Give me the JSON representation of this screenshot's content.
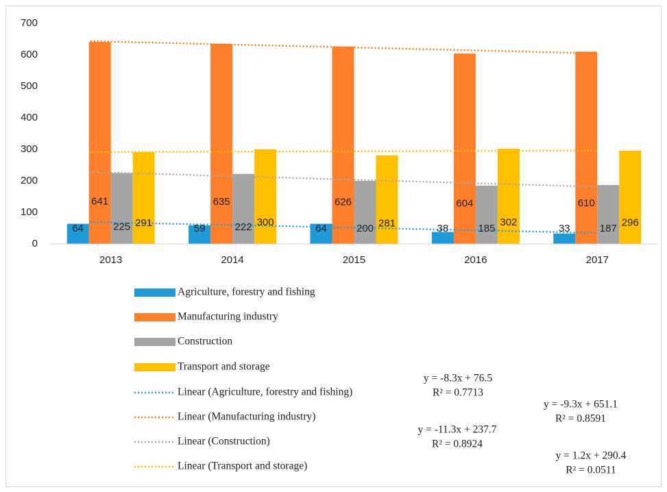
{
  "chart_data": {
    "type": "bar",
    "categories": [
      "2013",
      "2014",
      "2015",
      "2016",
      "2017"
    ],
    "ylim": [
      0,
      700
    ],
    "yticks": [
      0,
      100,
      200,
      300,
      400,
      500,
      600,
      700
    ],
    "series": [
      {
        "name": "Agriculture, forestry and fishing",
        "color": "#1f9ad6",
        "values": [
          64,
          59,
          64,
          38,
          33
        ],
        "trendline": {
          "name": "Linear (Agriculture, forestry and fishing)",
          "color": "#2e9bd6",
          "equation": "y = -8.3x + 76.5",
          "r2": "R² = 0.7713"
        }
      },
      {
        "name": "Manufacturing industry",
        "color": "#fd7f2c",
        "values": [
          641,
          635,
          626,
          604,
          610
        ],
        "trendline": {
          "name": "Linear (Manufacturing industry)",
          "color": "#f47b20",
          "equation": "y = -9.3x + 651.1",
          "r2": "R² = 0.8591"
        }
      },
      {
        "name": "Construction",
        "color": "#a5a5a5",
        "values": [
          225,
          222,
          200,
          185,
          187
        ],
        "trendline": {
          "name": "Linear (Construction)",
          "color": "#a9a9a9",
          "equation": "y = -11.3x + 237.7",
          "r2": "R² = 0.8924"
        }
      },
      {
        "name": "Transport and storage",
        "color": "#ffc000",
        "values": [
          291,
          300,
          281,
          302,
          296
        ],
        "trendline": {
          "name": "Linear (Transport and storage)",
          "color": "#ffc000",
          "equation": "y = 1.2x + 290.4",
          "r2": "R² = 0.0511"
        }
      }
    ]
  }
}
